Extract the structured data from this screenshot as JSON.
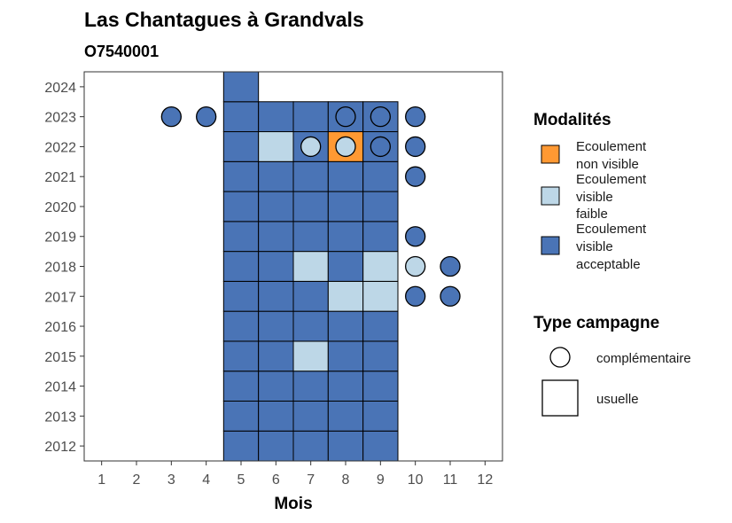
{
  "chart_data": {
    "type": "heatmap",
    "title": "Las Chantagues à Grandvals",
    "subtitle": "O7540001",
    "xlabel": "Mois",
    "ylabel": "",
    "x_ticks": [
      1,
      2,
      3,
      4,
      5,
      6,
      7,
      8,
      9,
      10,
      11,
      12
    ],
    "y_ticks": [
      2012,
      2013,
      2014,
      2015,
      2016,
      2017,
      2018,
      2019,
      2020,
      2021,
      2022,
      2023,
      2024
    ],
    "xlim": [
      0.5,
      12.5
    ],
    "ylim": [
      2011.5,
      2024.5
    ],
    "grid": false,
    "legend_position": "right",
    "colors": {
      "non_visible": "#ff9933",
      "faible": "#bdd7e7",
      "acceptable": "#4a74b6",
      "border": "#000000",
      "panel_border": "#333333"
    },
    "legend": {
      "fill": {
        "title": "Modalités",
        "entries": [
          {
            "key": "non_visible",
            "lines": [
              "Ecoulement",
              "non visible"
            ]
          },
          {
            "key": "faible",
            "lines": [
              "Ecoulement",
              "visible",
              "faible"
            ]
          },
          {
            "key": "acceptable",
            "lines": [
              "Ecoulement",
              "visible",
              "acceptable"
            ]
          }
        ]
      },
      "shape": {
        "title": "Type campagne",
        "entries": [
          {
            "key": "complementaire",
            "label": "complémentaire",
            "shape": "circle"
          },
          {
            "key": "usuelle",
            "label": "usuelle",
            "shape": "square"
          }
        ]
      }
    },
    "observations": [
      {
        "year": 2012,
        "month": 5,
        "type": "usuelle",
        "value": "acceptable"
      },
      {
        "year": 2012,
        "month": 6,
        "type": "usuelle",
        "value": "acceptable"
      },
      {
        "year": 2012,
        "month": 7,
        "type": "usuelle",
        "value": "acceptable"
      },
      {
        "year": 2012,
        "month": 8,
        "type": "usuelle",
        "value": "acceptable"
      },
      {
        "year": 2012,
        "month": 9,
        "type": "usuelle",
        "value": "acceptable"
      },
      {
        "year": 2013,
        "month": 5,
        "type": "usuelle",
        "value": "acceptable"
      },
      {
        "year": 2013,
        "month": 6,
        "type": "usuelle",
        "value": "acceptable"
      },
      {
        "year": 2013,
        "month": 7,
        "type": "usuelle",
        "value": "acceptable"
      },
      {
        "year": 2013,
        "month": 8,
        "type": "usuelle",
        "value": "acceptable"
      },
      {
        "year": 2013,
        "month": 9,
        "type": "usuelle",
        "value": "acceptable"
      },
      {
        "year": 2014,
        "month": 5,
        "type": "usuelle",
        "value": "acceptable"
      },
      {
        "year": 2014,
        "month": 6,
        "type": "usuelle",
        "value": "acceptable"
      },
      {
        "year": 2014,
        "month": 7,
        "type": "usuelle",
        "value": "acceptable"
      },
      {
        "year": 2014,
        "month": 8,
        "type": "usuelle",
        "value": "acceptable"
      },
      {
        "year": 2014,
        "month": 9,
        "type": "usuelle",
        "value": "acceptable"
      },
      {
        "year": 2015,
        "month": 5,
        "type": "usuelle",
        "value": "acceptable"
      },
      {
        "year": 2015,
        "month": 6,
        "type": "usuelle",
        "value": "acceptable"
      },
      {
        "year": 2015,
        "month": 7,
        "type": "usuelle",
        "value": "faible"
      },
      {
        "year": 2015,
        "month": 8,
        "type": "usuelle",
        "value": "acceptable"
      },
      {
        "year": 2015,
        "month": 9,
        "type": "usuelle",
        "value": "acceptable"
      },
      {
        "year": 2016,
        "month": 5,
        "type": "usuelle",
        "value": "acceptable"
      },
      {
        "year": 2016,
        "month": 6,
        "type": "usuelle",
        "value": "acceptable"
      },
      {
        "year": 2016,
        "month": 7,
        "type": "usuelle",
        "value": "acceptable"
      },
      {
        "year": 2016,
        "month": 8,
        "type": "usuelle",
        "value": "acceptable"
      },
      {
        "year": 2016,
        "month": 9,
        "type": "usuelle",
        "value": "acceptable"
      },
      {
        "year": 2017,
        "month": 5,
        "type": "usuelle",
        "value": "acceptable"
      },
      {
        "year": 2017,
        "month": 6,
        "type": "usuelle",
        "value": "acceptable"
      },
      {
        "year": 2017,
        "month": 7,
        "type": "usuelle",
        "value": "acceptable"
      },
      {
        "year": 2017,
        "month": 8,
        "type": "usuelle",
        "value": "faible"
      },
      {
        "year": 2017,
        "month": 9,
        "type": "usuelle",
        "value": "faible"
      },
      {
        "year": 2017,
        "month": 10,
        "type": "complementaire",
        "value": "acceptable"
      },
      {
        "year": 2017,
        "month": 11,
        "type": "complementaire",
        "value": "acceptable"
      },
      {
        "year": 2018,
        "month": 5,
        "type": "usuelle",
        "value": "acceptable"
      },
      {
        "year": 2018,
        "month": 6,
        "type": "usuelle",
        "value": "acceptable"
      },
      {
        "year": 2018,
        "month": 7,
        "type": "usuelle",
        "value": "faible"
      },
      {
        "year": 2018,
        "month": 8,
        "type": "usuelle",
        "value": "acceptable"
      },
      {
        "year": 2018,
        "month": 9,
        "type": "usuelle",
        "value": "faible"
      },
      {
        "year": 2018,
        "month": 10,
        "type": "complementaire",
        "value": "faible"
      },
      {
        "year": 2018,
        "month": 11,
        "type": "complementaire",
        "value": "acceptable"
      },
      {
        "year": 2019,
        "month": 5,
        "type": "usuelle",
        "value": "acceptable"
      },
      {
        "year": 2019,
        "month": 6,
        "type": "usuelle",
        "value": "acceptable"
      },
      {
        "year": 2019,
        "month": 7,
        "type": "usuelle",
        "value": "acceptable"
      },
      {
        "year": 2019,
        "month": 8,
        "type": "usuelle",
        "value": "acceptable"
      },
      {
        "year": 2019,
        "month": 9,
        "type": "usuelle",
        "value": "acceptable"
      },
      {
        "year": 2019,
        "month": 10,
        "type": "complementaire",
        "value": "acceptable"
      },
      {
        "year": 2020,
        "month": 5,
        "type": "usuelle",
        "value": "acceptable"
      },
      {
        "year": 2020,
        "month": 6,
        "type": "usuelle",
        "value": "acceptable"
      },
      {
        "year": 2020,
        "month": 7,
        "type": "usuelle",
        "value": "acceptable"
      },
      {
        "year": 2020,
        "month": 8,
        "type": "usuelle",
        "value": "acceptable"
      },
      {
        "year": 2020,
        "month": 9,
        "type": "usuelle",
        "value": "acceptable"
      },
      {
        "year": 2021,
        "month": 5,
        "type": "usuelle",
        "value": "acceptable"
      },
      {
        "year": 2021,
        "month": 6,
        "type": "usuelle",
        "value": "acceptable"
      },
      {
        "year": 2021,
        "month": 7,
        "type": "usuelle",
        "value": "acceptable"
      },
      {
        "year": 2021,
        "month": 8,
        "type": "usuelle",
        "value": "acceptable"
      },
      {
        "year": 2021,
        "month": 9,
        "type": "usuelle",
        "value": "acceptable"
      },
      {
        "year": 2021,
        "month": 10,
        "type": "complementaire",
        "value": "acceptable"
      },
      {
        "year": 2022,
        "month": 5,
        "type": "usuelle",
        "value": "acceptable"
      },
      {
        "year": 2022,
        "month": 6,
        "type": "usuelle",
        "value": "faible"
      },
      {
        "year": 2022,
        "month": 7,
        "type": "usuelle",
        "value": "acceptable"
      },
      {
        "year": 2022,
        "month": 7,
        "type": "complementaire",
        "value": "faible"
      },
      {
        "year": 2022,
        "month": 8,
        "type": "usuelle",
        "value": "non_visible"
      },
      {
        "year": 2022,
        "month": 8,
        "type": "complementaire",
        "value": "faible"
      },
      {
        "year": 2022,
        "month": 9,
        "type": "usuelle",
        "value": "acceptable"
      },
      {
        "year": 2022,
        "month": 9,
        "type": "complementaire",
        "value": "acceptable"
      },
      {
        "year": 2022,
        "month": 10,
        "type": "complementaire",
        "value": "acceptable"
      },
      {
        "year": 2023,
        "month": 3,
        "type": "complementaire",
        "value": "acceptable"
      },
      {
        "year": 2023,
        "month": 4,
        "type": "complementaire",
        "value": "acceptable"
      },
      {
        "year": 2023,
        "month": 5,
        "type": "usuelle",
        "value": "acceptable"
      },
      {
        "year": 2023,
        "month": 6,
        "type": "usuelle",
        "value": "acceptable"
      },
      {
        "year": 2023,
        "month": 7,
        "type": "usuelle",
        "value": "acceptable"
      },
      {
        "year": 2023,
        "month": 8,
        "type": "usuelle",
        "value": "acceptable"
      },
      {
        "year": 2023,
        "month": 8,
        "type": "complementaire",
        "value": "acceptable"
      },
      {
        "year": 2023,
        "month": 9,
        "type": "usuelle",
        "value": "acceptable"
      },
      {
        "year": 2023,
        "month": 9,
        "type": "complementaire",
        "value": "acceptable"
      },
      {
        "year": 2023,
        "month": 10,
        "type": "complementaire",
        "value": "acceptable"
      },
      {
        "year": 2024,
        "month": 5,
        "type": "usuelle",
        "value": "acceptable"
      }
    ]
  }
}
